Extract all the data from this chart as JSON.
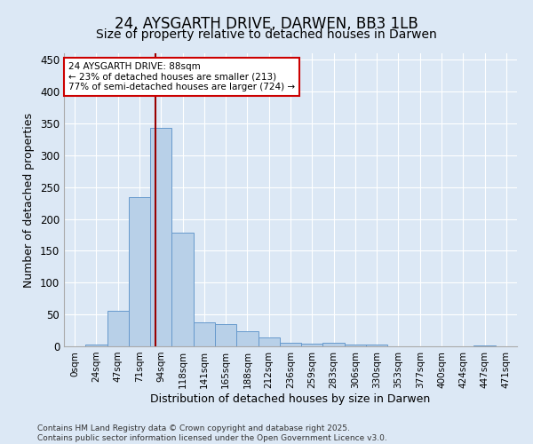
{
  "title": "24, AYSGARTH DRIVE, DARWEN, BB3 1LB",
  "subtitle": "Size of property relative to detached houses in Darwen",
  "xlabel": "Distribution of detached houses by size in Darwen",
  "ylabel": "Number of detached properties",
  "footnote1": "Contains HM Land Registry data © Crown copyright and database right 2025.",
  "footnote2": "Contains public sector information licensed under the Open Government Licence v3.0.",
  "annotation_title": "24 AYSGARTH DRIVE: 88sqm",
  "annotation_line2": "← 23% of detached houses are smaller (213)",
  "annotation_line3": "77% of semi-detached houses are larger (724) →",
  "bar_labels": [
    "0sqm",
    "24sqm",
    "47sqm",
    "71sqm",
    "94sqm",
    "118sqm",
    "141sqm",
    "165sqm",
    "188sqm",
    "212sqm",
    "236sqm",
    "259sqm",
    "283sqm",
    "306sqm",
    "330sqm",
    "353sqm",
    "377sqm",
    "400sqm",
    "424sqm",
    "447sqm",
    "471sqm"
  ],
  "bar_values": [
    0,
    3,
    56,
    234,
    343,
    178,
    37,
    35,
    24,
    14,
    6,
    4,
    6,
    3,
    3,
    0,
    0,
    0,
    0,
    2,
    0
  ],
  "bar_color": "#b8d0e8",
  "bar_edge_color": "#6699cc",
  "vline_color": "#990000",
  "annotation_box_edge": "#cc0000",
  "ylim": [
    0,
    460
  ],
  "yticks": [
    0,
    50,
    100,
    150,
    200,
    250,
    300,
    350,
    400,
    450
  ],
  "bg_color": "#dce8f5",
  "plot_bg_color": "#dce8f5",
  "grid_color": "#ffffff",
  "title_fontsize": 12,
  "subtitle_fontsize": 10,
  "tick_fontsize": 7.5,
  "label_fontsize": 9,
  "footnote_fontsize": 6.5
}
